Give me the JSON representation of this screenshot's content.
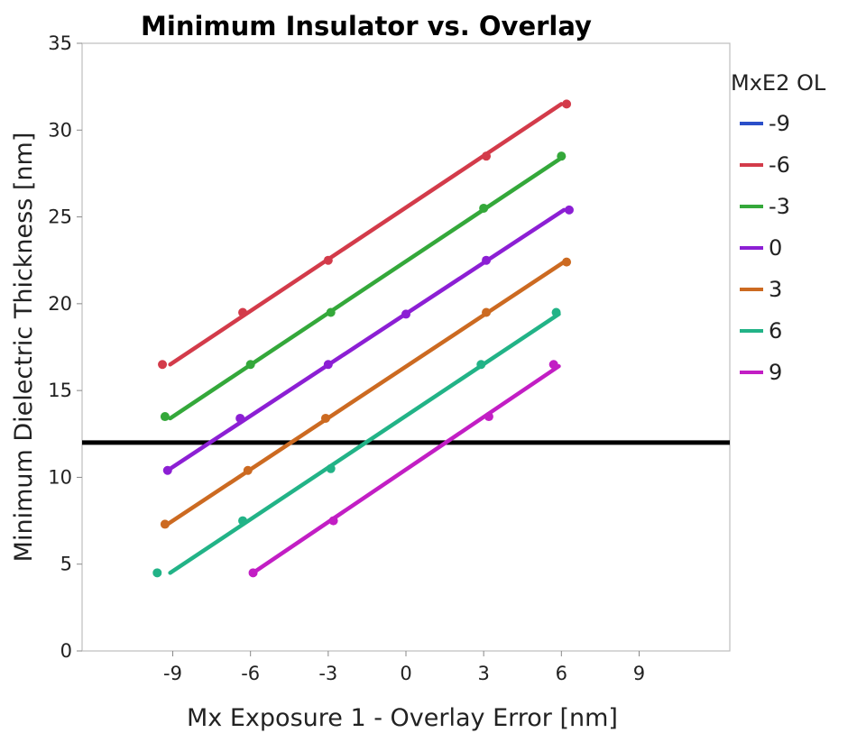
{
  "chart_data": {
    "type": "line",
    "title": "Minimum Insulator vs. Overlay",
    "xlabel": "Mx Exposure 1 - Overlay Error [nm]",
    "ylabel": "Minimum Dielectric Thickness [nm]",
    "xlim": [
      -12.5,
      12.5
    ],
    "ylim": [
      0,
      35
    ],
    "xticks": [
      -9,
      -6,
      -3,
      0,
      3,
      6,
      9
    ],
    "yticks": [
      0,
      5,
      10,
      15,
      20,
      25,
      30,
      35
    ],
    "grid": false,
    "legend": {
      "title": "MxE2 OL",
      "placement": "right"
    },
    "threshold": {
      "y": 12,
      "color": "#000000"
    },
    "series": [
      {
        "name": "-9",
        "color": "#2b4fc9",
        "points": [],
        "fit": []
      },
      {
        "name": "-6",
        "color": "#d33b4a",
        "points": [
          [
            -9.4,
            16.5
          ],
          [
            -6.3,
            19.5
          ],
          [
            -3.0,
            22.5
          ],
          [
            3.1,
            28.5
          ],
          [
            6.2,
            31.5
          ]
        ],
        "fit": [
          [
            -9.1,
            16.5
          ],
          [
            6.0,
            31.5
          ]
        ]
      },
      {
        "name": "-3",
        "color": "#34a83a",
        "points": [
          [
            -9.3,
            13.5
          ],
          [
            -6.0,
            16.5
          ],
          [
            -2.9,
            19.5
          ],
          [
            3.0,
            25.5
          ],
          [
            6.0,
            28.5
          ]
        ],
        "fit": [
          [
            -9.1,
            13.4
          ],
          [
            6.0,
            28.4
          ]
        ]
      },
      {
        "name": "0",
        "color": "#8c1fd4",
        "points": [
          [
            -9.2,
            10.4
          ],
          [
            -6.4,
            13.4
          ],
          [
            -3.0,
            16.5
          ],
          [
            0.0,
            19.4
          ],
          [
            3.1,
            22.5
          ],
          [
            6.3,
            25.4
          ]
        ],
        "fit": [
          [
            -9.2,
            10.4
          ],
          [
            6.1,
            25.4
          ]
        ]
      },
      {
        "name": "3",
        "color": "#cc6a21",
        "points": [
          [
            -9.3,
            7.3
          ],
          [
            -6.1,
            10.4
          ],
          [
            -3.1,
            13.4
          ],
          [
            3.1,
            19.5
          ],
          [
            6.2,
            22.4
          ]
        ],
        "fit": [
          [
            -9.2,
            7.3
          ],
          [
            6.1,
            22.4
          ]
        ]
      },
      {
        "name": "6",
        "color": "#22b387",
        "points": [
          [
            -9.6,
            4.5
          ],
          [
            -6.3,
            7.5
          ],
          [
            -2.9,
            10.5
          ],
          [
            2.9,
            16.5
          ],
          [
            5.8,
            19.5
          ]
        ],
        "fit": [
          [
            -9.1,
            4.5
          ],
          [
            5.9,
            19.4
          ]
        ]
      },
      {
        "name": "9",
        "color": "#c21ec4",
        "points": [
          [
            -5.9,
            4.5
          ],
          [
            -2.8,
            7.5
          ],
          [
            3.2,
            13.5
          ],
          [
            5.7,
            16.5
          ]
        ],
        "fit": [
          [
            -5.9,
            4.5
          ],
          [
            5.9,
            16.4
          ]
        ]
      }
    ]
  }
}
